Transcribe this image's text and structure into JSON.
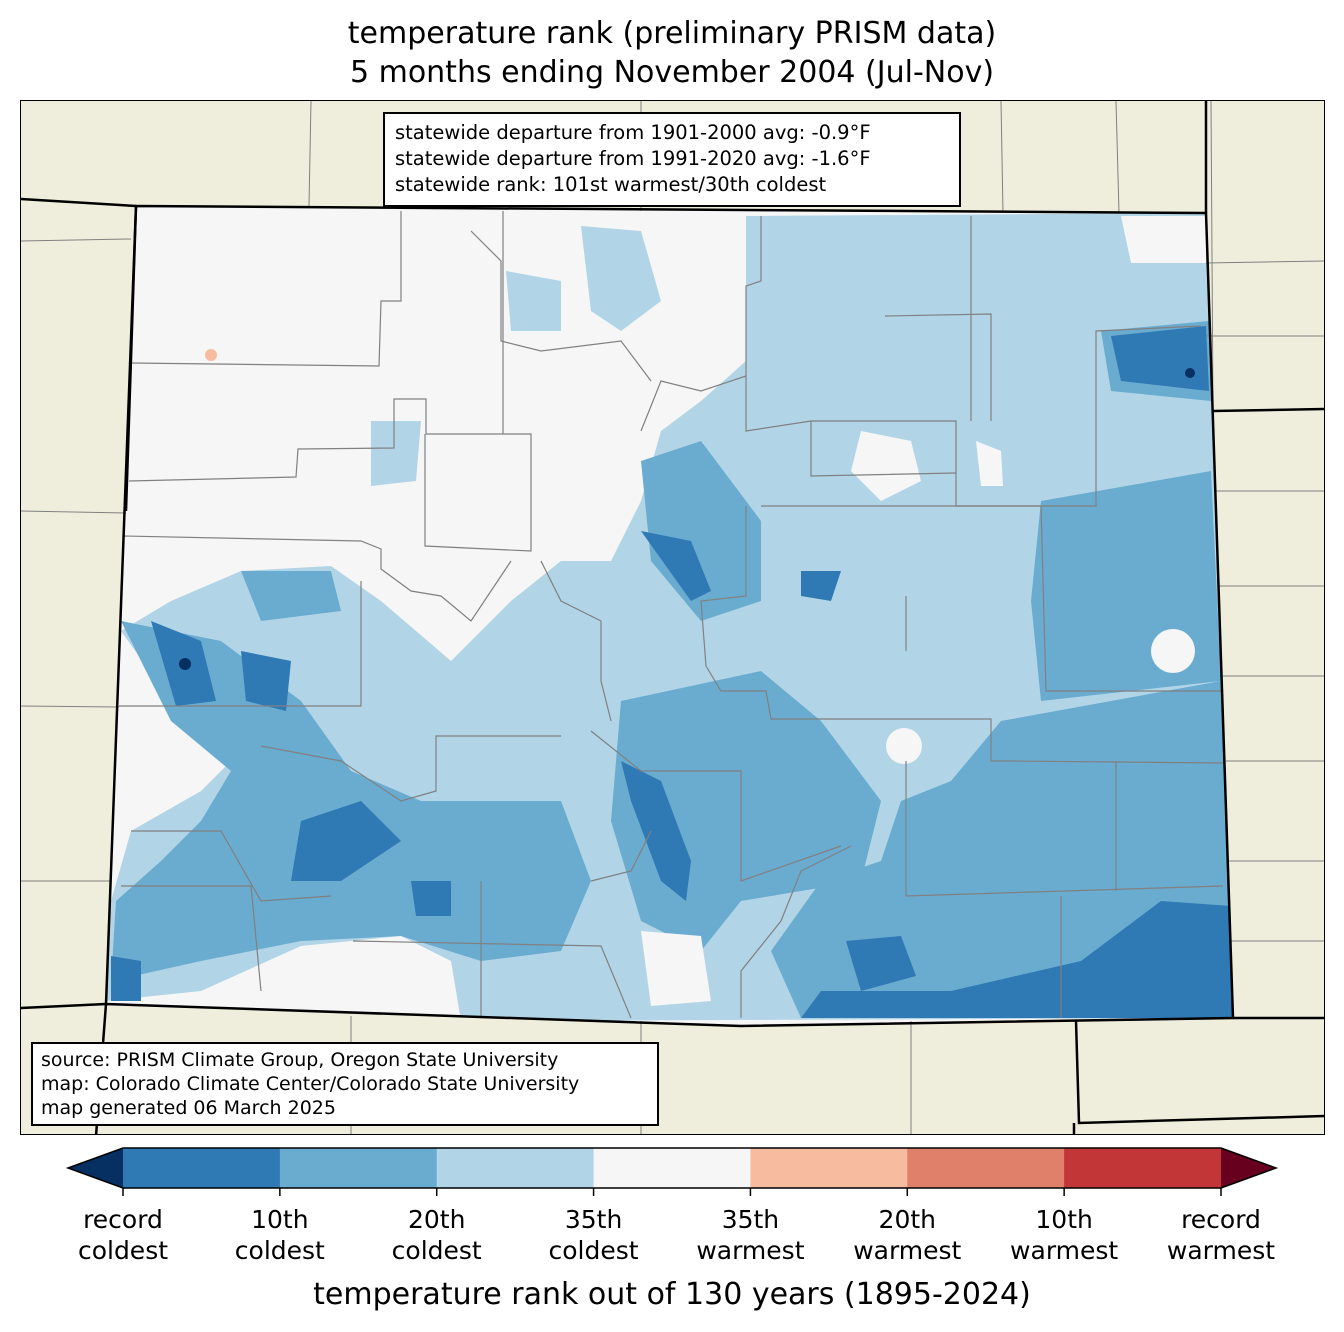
{
  "title": {
    "line1": "temperature rank (preliminary PRISM data)",
    "line2": "5 months ending November 2004 (Jul-Nov)"
  },
  "stats": {
    "line1": "statewide departure from 1901-2000 avg: -0.9°F",
    "line2": "statewide departure from 1991-2020 avg: -1.6°F",
    "line3": "statewide rank: 101st warmest/30th coldest"
  },
  "source": {
    "line1": "source: PRISM Climate Group, Oregon State University",
    "line2": "map: Colorado Climate Center/Colorado State University",
    "line3": "map generated 06 March 2025"
  },
  "colorbar": {
    "label": "temperature rank out of 130 years (1895-2024)",
    "colors": {
      "below": "#053061",
      "bins": [
        "#2f79b5",
        "#6aacd0",
        "#b1d5e7",
        "#f6f6f6",
        "#f7bba0",
        "#e0806a",
        "#c23638"
      ],
      "above": "#67001f"
    },
    "ticks": [
      {
        "line1": "record",
        "line2": "coldest"
      },
      {
        "line1": "10th",
        "line2": "coldest"
      },
      {
        "line1": "20th",
        "line2": "coldest"
      },
      {
        "line1": "35th",
        "line2": "coldest"
      },
      {
        "line1": "35th",
        "line2": "warmest"
      },
      {
        "line1": "20th",
        "line2": "warmest"
      },
      {
        "line1": "10th",
        "line2": "warmest"
      },
      {
        "line1": "record",
        "line2": "warmest"
      }
    ]
  },
  "map_colors": {
    "land": "#efeedd",
    "state_border": "#000000",
    "county_border": "#808080"
  }
}
